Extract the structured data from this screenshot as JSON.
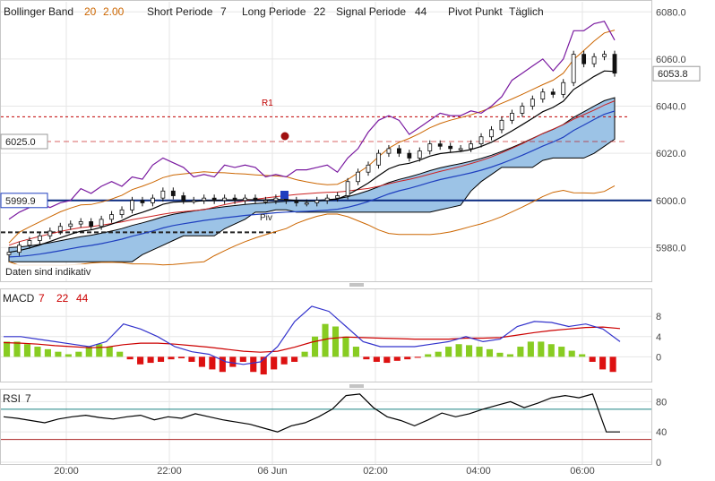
{
  "colors": {
    "bollinger": "#cc6600",
    "short": "#000000",
    "long": "#1f3fbf",
    "signal": "#7a1aa0",
    "pivot_r1": "#c00000",
    "pivot": "#222222",
    "cloud": "#9cc3e6",
    "macd_line": "#3333cc",
    "macd_signal": "#cc0000",
    "hist_pos": "#88cc22",
    "hist_neg": "#dd1111",
    "rsi_line": "#000000",
    "rsi_upper": "#1a8080",
    "rsi_lower": "#aa2222"
  },
  "legend": {
    "bollinger_label": "Bollinger Band",
    "bollinger_period": "20",
    "bollinger_dev": "2.00",
    "short_label": "Short Periode",
    "short_value": "7",
    "long_label": "Long Periode",
    "long_value": "22",
    "signal_label": "Signal Periode",
    "signal_value": "44",
    "pivot_label": "Pivot Punkt",
    "pivot_value": "Täglich"
  },
  "labels": {
    "r1": "R1",
    "piv": "Piv",
    "disclaimer": "Daten sind indikativ",
    "macd_title": "MACD",
    "macd_p1": "7",
    "macd_p2": "22",
    "macd_p3": "44",
    "rsi_title": "RSI",
    "rsi_p": "7"
  },
  "chart_data": [
    {
      "type": "line",
      "panel": "price",
      "y_ticks": [
        "6080.0",
        "6060.0",
        "6040.0",
        "6020.0",
        "6000.0",
        "5980.0"
      ],
      "ylim": [
        5968,
        6082
      ],
      "x_ticks": [
        "20:00",
        "22:00",
        "06 Jun",
        "02:00",
        "04:00",
        "06:00"
      ],
      "price_tags": [
        "6053.8",
        "6025.0",
        "5999.9"
      ],
      "last_price": 6053.8,
      "r1_level": 6035.5,
      "pivot_level": 5986.5,
      "reference_level": 6025.0,
      "baseline_level": 6000.0,
      "closes": [
        5978,
        5981,
        5983,
        5985,
        5987,
        5989,
        5990,
        5991,
        5989,
        5992,
        5994,
        5996,
        6000,
        5999,
        6001,
        6004,
        6002,
        6000,
        6000,
        6001,
        6000,
        6001,
        6000,
        6001,
        6000,
        6000,
        6001,
        6000,
        5999,
        5999,
        6000,
        6001,
        6002,
        6008,
        6012,
        6015,
        6020,
        6022,
        6020,
        6018,
        6021,
        6024,
        6023,
        6022,
        6022,
        6024,
        6027,
        6030,
        6034,
        6037,
        6040,
        6043,
        6046,
        6045,
        6050,
        6062,
        6058,
        6061,
        6062,
        6054
      ]
    },
    {
      "type": "bar",
      "panel": "macd",
      "y_ticks": [
        "8",
        "4",
        "0"
      ],
      "ylim": [
        -4.2,
        10.7
      ],
      "histogram": [
        3,
        3,
        2.5,
        2,
        1.5,
        1,
        0.5,
        1,
        2,
        2.5,
        2,
        1,
        -0.5,
        -1.5,
        -1.2,
        -1,
        -0.5,
        -0.3,
        -1,
        -2,
        -2.5,
        -3,
        -2,
        -1,
        -3,
        -3.5,
        -2.5,
        -1.5,
        -1,
        1,
        4,
        6.5,
        6,
        4,
        2,
        -0.5,
        -1,
        -1.2,
        -0.8,
        -0.5,
        -0.2,
        0.5,
        1,
        2,
        2.5,
        2.3,
        2,
        1.5,
        0.8,
        0.5,
        2,
        3,
        3,
        2.5,
        2,
        1.2,
        0.5,
        -1,
        -2.5,
        -3
      ],
      "macd_line": [
        4,
        4,
        3.5,
        3,
        2.5,
        2,
        3,
        6.5,
        5.5,
        4,
        2,
        1,
        0.5,
        -1,
        -1.5,
        -1,
        2,
        7,
        10,
        9,
        6,
        3,
        2,
        2,
        2,
        2.5,
        3,
        4,
        3,
        3.5,
        6,
        7,
        6.8,
        6,
        6.5,
        5.5,
        3
      ],
      "signal_line": [
        2.8,
        2.7,
        2.5,
        2.2,
        2,
        1.8,
        1.9,
        2.4,
        2.7,
        2.7,
        2.5,
        2.2,
        1.9,
        1.5,
        1.1,
        0.9,
        1.1,
        1.9,
        2.9,
        3.6,
        3.9,
        3.8,
        3.7,
        3.6,
        3.5,
        3.5,
        3.5,
        3.7,
        3.7,
        3.8,
        4.3,
        4.8,
        5.2,
        5.5,
        5.8,
        5.9,
        5.6
      ]
    },
    {
      "type": "line",
      "panel": "rsi",
      "y_ticks": [
        "80",
        "40",
        "0"
      ],
      "ylim": [
        0,
        97
      ],
      "upper_level": 70,
      "lower_level": 30,
      "rsi_line": [
        60,
        58,
        55,
        52,
        57,
        60,
        62,
        59,
        57,
        60,
        62,
        56,
        60,
        58,
        64,
        60,
        56,
        53,
        50,
        45,
        40,
        48,
        52,
        60,
        70,
        88,
        90,
        72,
        60,
        55,
        48,
        56,
        65,
        60,
        64,
        70,
        75,
        80,
        72,
        78,
        85,
        88,
        85,
        90,
        40,
        40
      ]
    }
  ]
}
